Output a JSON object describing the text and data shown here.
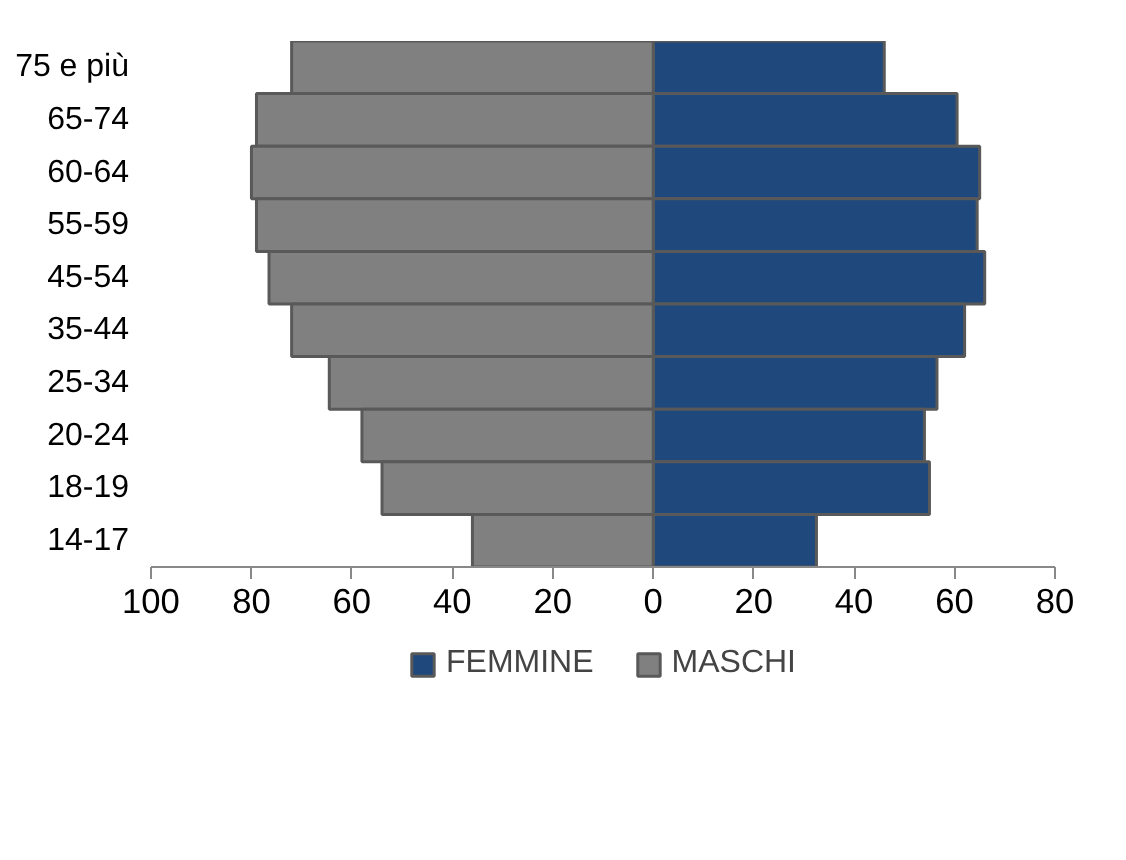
{
  "chart_data": {
    "type": "bar",
    "orientation": "horizontal",
    "categories": [
      "75 e più",
      "65-74",
      "60-64",
      "55-59",
      "45-54",
      "35-44",
      "25-34",
      "20-24",
      "18-19",
      "14-17"
    ],
    "series": [
      {
        "name": "FEMMINE",
        "color": "#1f497d",
        "values": [
          46,
          60.5,
          65,
          64.5,
          66,
          62,
          56.5,
          54,
          55,
          32.5
        ]
      },
      {
        "name": "MASCHI",
        "color": "#808080",
        "values": [
          -72,
          -79,
          -80,
          -79,
          -76.5,
          -72,
          -64.5,
          -58,
          -54,
          -36
        ]
      }
    ],
    "xlim": [
      -100,
      80
    ],
    "xticks": [
      {
        "value": -100,
        "label": "100"
      },
      {
        "value": -80,
        "label": "80"
      },
      {
        "value": -60,
        "label": "60"
      },
      {
        "value": -40,
        "label": "40"
      },
      {
        "value": -20,
        "label": "20"
      },
      0,
      20,
      40,
      60,
      80
    ],
    "stacked": true,
    "grid": false,
    "legend": "bottom"
  }
}
